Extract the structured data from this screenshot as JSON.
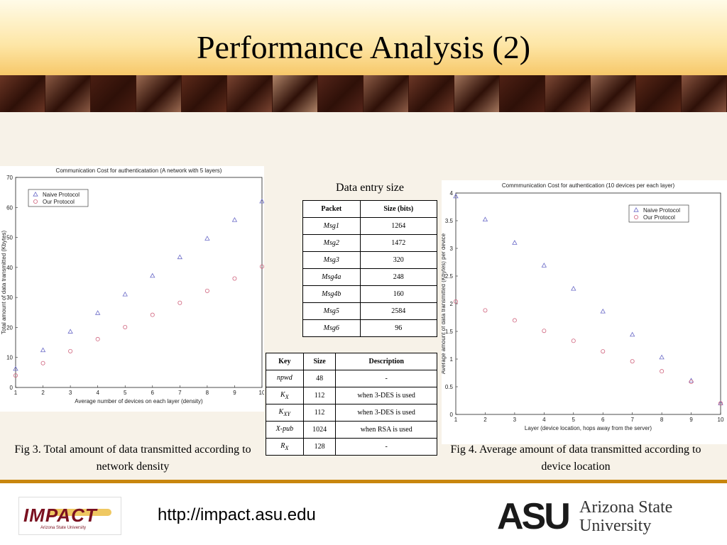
{
  "slide": {
    "title": "Performance Analysis (2)",
    "caption1": "Fig 3. Total amount of data transmitted according to network density",
    "caption2": "Fig 4. Average amount of data transmitted according to device location",
    "footer_url": "http://impact.asu.edu",
    "impact_logo_text": "IMPACT",
    "impact_logo_sub": "Arizona State University",
    "asu_mark": "ASU",
    "asu_name_line1": "Arizona State",
    "asu_name_line2": "University"
  },
  "colors": {
    "naive": "#6b6bc8",
    "ours": "#d0647e",
    "footer_bar": "#c8860e"
  },
  "entry_table": {
    "title": "Data entry size",
    "headers": [
      "Packet",
      "Size (bits)"
    ],
    "rows": [
      [
        "Msg1",
        "1264"
      ],
      [
        "Msg2",
        "1472"
      ],
      [
        "Msg3",
        "320"
      ],
      [
        "Msg4a",
        "248"
      ],
      [
        "Msg4b",
        "160"
      ],
      [
        "Msg5",
        "2584"
      ],
      [
        "Msg6",
        "96"
      ]
    ]
  },
  "key_table": {
    "headers": [
      "Key",
      "Size",
      "Description"
    ],
    "rows": [
      {
        "key": "npwd",
        "sub": "",
        "size": "48",
        "desc": "-"
      },
      {
        "key": "K",
        "sub": "X",
        "size": "112",
        "desc": "when 3-DES is used"
      },
      {
        "key": "K",
        "sub": "XY",
        "size": "112",
        "desc": "when 3-DES is used"
      },
      {
        "key": "X-pub",
        "sub": "",
        "size": "1024",
        "desc": "when RSA is used"
      },
      {
        "key": "R",
        "sub": "X",
        "size": "128",
        "desc": "-"
      }
    ]
  },
  "chart_data": [
    {
      "type": "scatter",
      "title": "Communication Cost for authenticatation (A network with 5 layers)",
      "xlabel": "Average number of devices on each layer (density)",
      "ylabel": "Total amount of data transmitted (Kbytes)",
      "xlim": [
        1,
        10
      ],
      "ylim": [
        0,
        70
      ],
      "xticks": [
        "1",
        "2",
        "3",
        "4",
        "5",
        "6",
        "7",
        "8",
        "9",
        "10"
      ],
      "yticks": [
        "0",
        "10",
        "20",
        "30",
        "40",
        "50",
        "60",
        "70"
      ],
      "legend_position": "top-left",
      "grid": false,
      "x": [
        1,
        2,
        3,
        4,
        5,
        6,
        7,
        8,
        9,
        10
      ],
      "series": [
        {
          "name": "Naive Protocol",
          "marker": "triangle",
          "values": [
            6.2,
            12.4,
            18.6,
            24.8,
            31.0,
            37.2,
            43.4,
            49.6,
            55.8,
            62.0
          ]
        },
        {
          "name": "Our Protocol",
          "marker": "circle",
          "values": [
            4.0,
            8.1,
            12.1,
            16.1,
            20.1,
            24.2,
            28.2,
            32.2,
            36.3,
            40.3
          ]
        }
      ]
    },
    {
      "type": "scatter",
      "title": "Commmunication Cost for authentication (10 devices per each layer)",
      "xlabel": "Layer (device location, hops away from the server)",
      "ylabel": "Average amount of data transmitted (Kbytes) per device",
      "xlim": [
        1,
        10
      ],
      "ylim": [
        0,
        4
      ],
      "xticks": [
        "1",
        "2",
        "3",
        "4",
        "5",
        "6",
        "7",
        "8",
        "9",
        "10"
      ],
      "yticks": [
        "0",
        "0.5",
        "1",
        "1.5",
        "2",
        "2.5",
        "3",
        "3.5",
        "4"
      ],
      "legend_position": "top-right",
      "grid": false,
      "x": [
        1,
        2,
        3,
        4,
        5,
        6,
        7,
        8,
        9,
        10
      ],
      "series": [
        {
          "name": "Naive Protocol",
          "marker": "triangle",
          "values": [
            3.94,
            3.52,
            3.1,
            2.69,
            2.27,
            1.86,
            1.44,
            1.03,
            0.61,
            0.2
          ]
        },
        {
          "name": "Our Protocol",
          "marker": "circle",
          "values": [
            2.04,
            1.88,
            1.7,
            1.51,
            1.33,
            1.14,
            0.96,
            0.78,
            0.59,
            0.2
          ]
        }
      ]
    }
  ]
}
